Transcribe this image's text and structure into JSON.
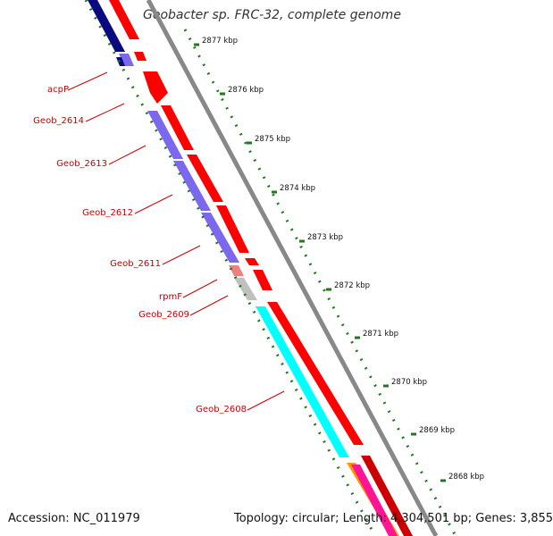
{
  "title": "Geobacter sp. FRC-32, complete genome",
  "accession": "Accession: NC_011979",
  "stats": "Topology: circular; Length: 4,304,501 bp; Genes: 3,855",
  "colors": {
    "forward_cds": "#ff0000",
    "reverse_cds_purple": "#7b68ee",
    "reverse_cds_navy": "#0a0a80",
    "rrna_teal": "#00ffff",
    "trna_gray": "#c0c0c0",
    "label_red": "#cc0000",
    "tick_green": "#1f7a1f",
    "backbone_gray": "#888888"
  },
  "scale_ticks": [
    {
      "label": "2877 kbp"
    },
    {
      "label": "2876 kbp"
    },
    {
      "label": "2875 kbp"
    },
    {
      "label": "2874 kbp"
    },
    {
      "label": "2873 kbp"
    },
    {
      "label": "2872 kbp"
    },
    {
      "label": "2871 kbp"
    },
    {
      "label": "2870 kbp"
    },
    {
      "label": "2869 kbp"
    },
    {
      "label": "2868 kbp"
    }
  ],
  "gene_labels": [
    {
      "name": "acpP"
    },
    {
      "name": "Geob_2614"
    },
    {
      "name": "Geob_2613"
    },
    {
      "name": "Geob_2612"
    },
    {
      "name": "Geob_2611"
    },
    {
      "name": "rpmF"
    },
    {
      "name": "Geob_2609"
    },
    {
      "name": "Geob_2608"
    }
  ]
}
